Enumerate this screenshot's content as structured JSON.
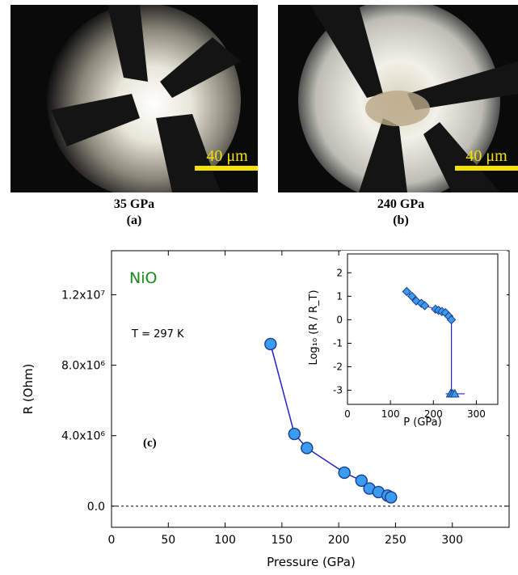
{
  "figure": {
    "panel_a": {
      "pressure": "35 GPa",
      "label": "(a)",
      "scale_bar": "40 μm"
    },
    "panel_b": {
      "pressure": "240 GPa",
      "label": "(b)",
      "scale_bar": "40 μm"
    },
    "panel_c": {
      "label": "(c)",
      "material": "NiO",
      "temperature": "T = 297 K"
    }
  },
  "colors": {
    "marker_fill": "#3a9cf0",
    "line": "#2222cc",
    "material_label": "#1a8a1a",
    "scale_bar": "#f2e300"
  },
  "chart_data": [
    {
      "type": "scatter",
      "xlabel": "Pressure  (GPa)",
      "ylabel": "R  (Ohm)",
      "xlim": [
        0,
        350
      ],
      "ylim": [
        -1200000,
        14500000
      ],
      "xticks": [
        "0",
        "50",
        "100",
        "150",
        "200",
        "250",
        "300"
      ],
      "xtick_values": [
        0,
        50,
        100,
        150,
        200,
        250,
        300
      ],
      "yticks": [
        "0.0",
        "4.0x10⁶",
        "8.0x10⁶",
        "1.2x10⁷"
      ],
      "ytick_values": [
        0,
        4000000,
        8000000,
        12000000
      ],
      "series": [
        {
          "x": [
            140,
            161,
            172,
            205,
            220,
            227,
            235,
            243,
            246
          ],
          "y": [
            9200000,
            4100000,
            3300000,
            1900000,
            1450000,
            1000000,
            800000,
            600000,
            500000
          ]
        }
      ],
      "reference_line": {
        "y": 0,
        "style": "dashed"
      }
    },
    {
      "type": "scatter",
      "xlabel": "P  (GPa)",
      "ylabel": "Log₁₀ (R / R_T)",
      "xlim": [
        0,
        350
      ],
      "ylim": [
        -3.6,
        2.8
      ],
      "xticks": [
        "0",
        "100",
        "200",
        "300"
      ],
      "xtick_values": [
        0,
        100,
        200,
        300
      ],
      "yticks": [
        "-3",
        "-2",
        "-1",
        "0",
        "1",
        "2"
      ],
      "ytick_values": [
        -3,
        -2,
        -1,
        0,
        1,
        2
      ],
      "series": [
        {
          "marker": "diamond",
          "x": [
            138,
            150,
            160,
            172,
            180,
            205,
            212,
            220,
            228,
            236,
            242
          ],
          "y": [
            1.2,
            1.0,
            0.8,
            0.7,
            0.6,
            0.45,
            0.4,
            0.35,
            0.3,
            0.15,
            0.0
          ]
        },
        {
          "marker": "triangle",
          "x": [
            240,
            245,
            250
          ],
          "y": [
            -3.15,
            -3.15,
            -3.15
          ]
        }
      ]
    }
  ]
}
